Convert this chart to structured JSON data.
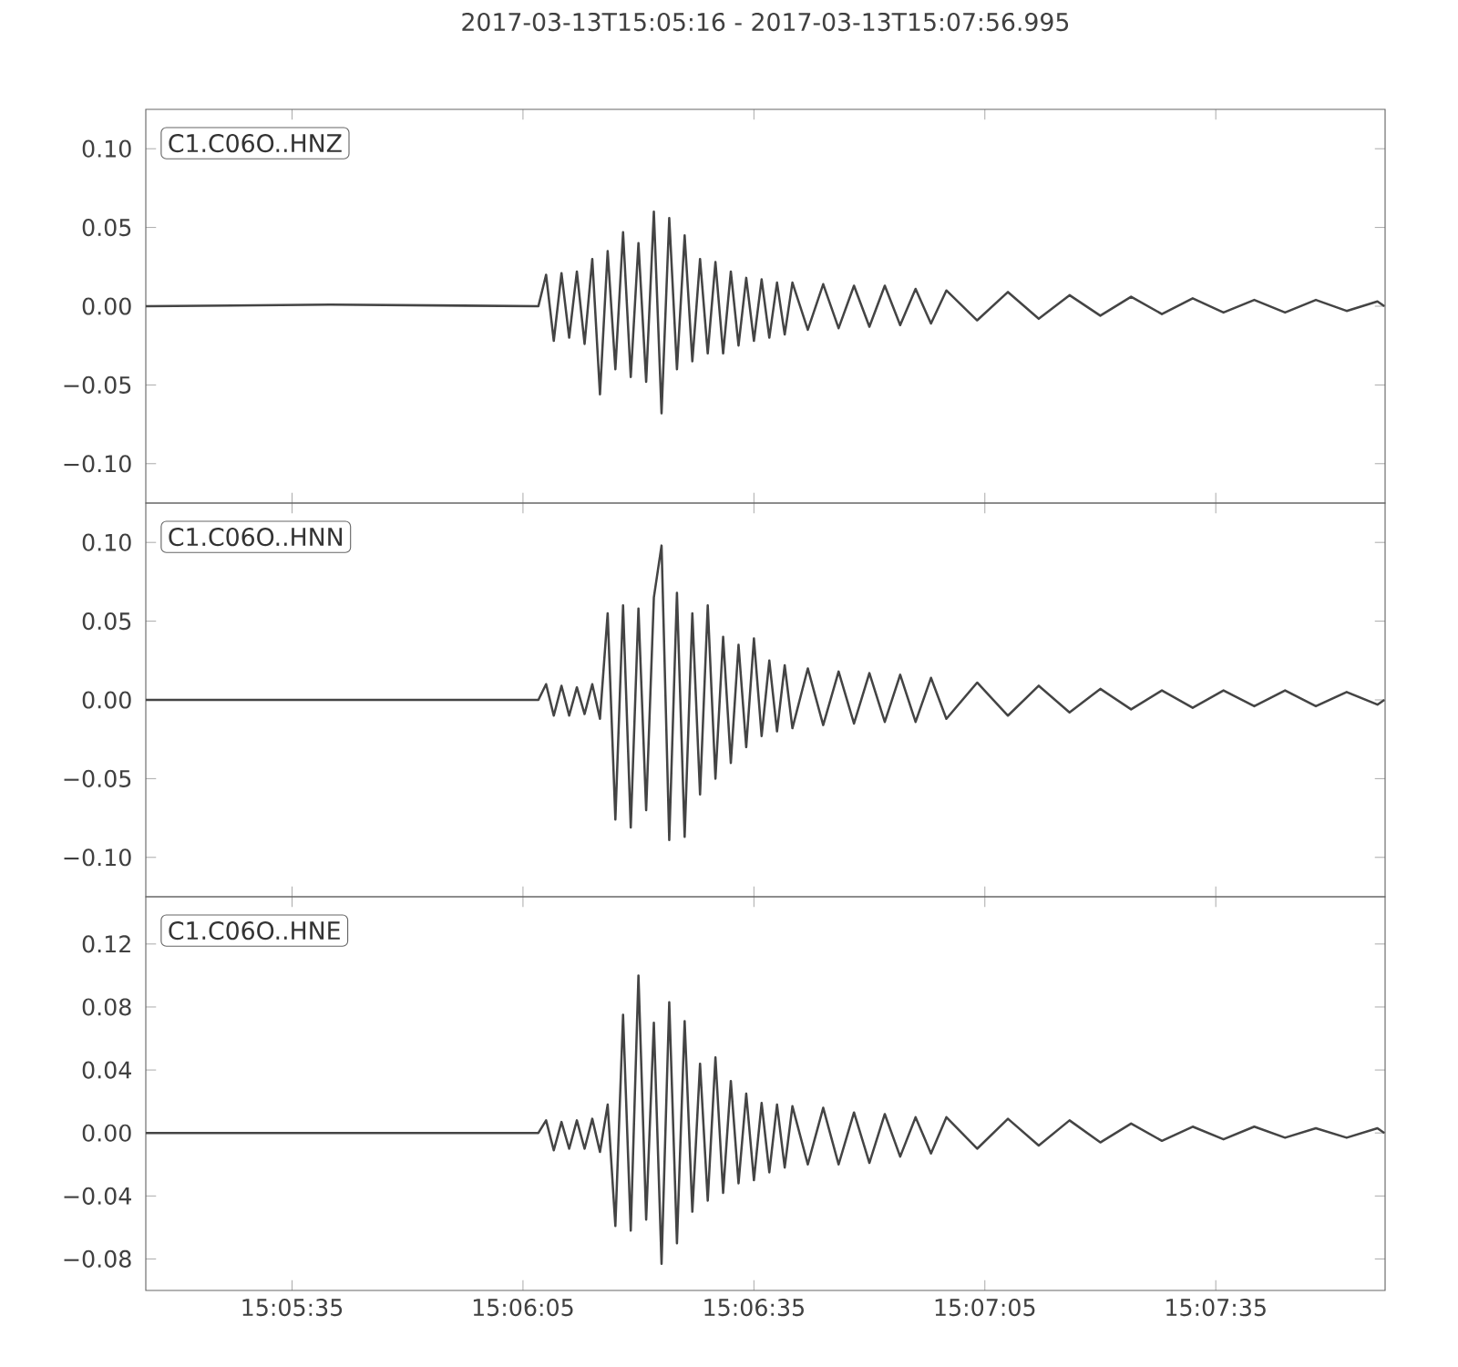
{
  "chart_data": [
    {
      "type": "line",
      "title": "2017-03-13T15:05:16  -  2017-03-13T15:07:56.995",
      "annotations": [
        "C1.C06O..HNZ"
      ],
      "color": "#444444",
      "tick_labels": "y",
      "xlim": [
        "2017-03-13T15:05:16",
        "2017-03-13T15:07:56.995"
      ],
      "xticks": [
        {
          "value": "2017-03-13T15:05:35",
          "label": null
        },
        {
          "value": "2017-03-13T15:06:05",
          "label": null
        },
        {
          "value": "2017-03-13T15:06:35",
          "label": null
        },
        {
          "value": "2017-03-13T15:07:05",
          "label": null
        },
        {
          "value": "2017-03-13T15:07:35",
          "label": null
        }
      ],
      "ylim": [
        -0.125,
        0.125
      ],
      "yticks": [
        {
          "value": -0.1,
          "label": "−0.10"
        },
        {
          "value": -0.05,
          "label": "−0.05"
        },
        {
          "value": 0,
          "label": "0.00"
        },
        {
          "value": 0.05,
          "label": "0.05"
        },
        {
          "value": 0.1,
          "label": "0.10"
        }
      ],
      "x": [
        "2017-03-13T15:05:16",
        "2017-03-13T15:05:40",
        "2017-03-13T15:06:07",
        "2017-03-13T15:06:08",
        "2017-03-13T15:06:09",
        "2017-03-13T15:06:10",
        "2017-03-13T15:06:11",
        "2017-03-13T15:06:12",
        "2017-03-13T15:06:13",
        "2017-03-13T15:06:14",
        "2017-03-13T15:06:15",
        "2017-03-13T15:06:16",
        "2017-03-13T15:06:17",
        "2017-03-13T15:06:18",
        "2017-03-13T15:06:19",
        "2017-03-13T15:06:20",
        "2017-03-13T15:06:21",
        "2017-03-13T15:06:22",
        "2017-03-13T15:06:23",
        "2017-03-13T15:06:24",
        "2017-03-13T15:06:25",
        "2017-03-13T15:06:26",
        "2017-03-13T15:06:27",
        "2017-03-13T15:06:28",
        "2017-03-13T15:06:29",
        "2017-03-13T15:06:30",
        "2017-03-13T15:06:31",
        "2017-03-13T15:06:32",
        "2017-03-13T15:06:33",
        "2017-03-13T15:06:34",
        "2017-03-13T15:06:35",
        "2017-03-13T15:06:36",
        "2017-03-13T15:06:37",
        "2017-03-13T15:06:38",
        "2017-03-13T15:06:39",
        "2017-03-13T15:06:40",
        "2017-03-13T15:06:42",
        "2017-03-13T15:06:44",
        "2017-03-13T15:06:46",
        "2017-03-13T15:06:48",
        "2017-03-13T15:06:50",
        "2017-03-13T15:06:52",
        "2017-03-13T15:06:54",
        "2017-03-13T15:06:56",
        "2017-03-13T15:06:58",
        "2017-03-13T15:07:00",
        "2017-03-13T15:07:04",
        "2017-03-13T15:07:08",
        "2017-03-13T15:07:12",
        "2017-03-13T15:07:16",
        "2017-03-13T15:07:20",
        "2017-03-13T15:07:24",
        "2017-03-13T15:07:28",
        "2017-03-13T15:07:32",
        "2017-03-13T15:07:36",
        "2017-03-13T15:07:40",
        "2017-03-13T15:07:44",
        "2017-03-13T15:07:48",
        "2017-03-13T15:07:52",
        "2017-03-13T15:07:56",
        "2017-03-13T15:07:56.9"
      ],
      "values": [
        0,
        0.001,
        0,
        0.02,
        -0.022,
        0.021,
        -0.02,
        0.022,
        -0.024,
        0.03,
        -0.056,
        0.035,
        -0.04,
        0.047,
        -0.045,
        0.04,
        -0.048,
        0.06,
        -0.068,
        0.056,
        -0.04,
        0.045,
        -0.035,
        0.03,
        -0.03,
        0.028,
        -0.03,
        0.022,
        -0.025,
        0.018,
        -0.022,
        0.017,
        -0.02,
        0.015,
        -0.018,
        0.015,
        -0.015,
        0.014,
        -0.014,
        0.013,
        -0.013,
        0.013,
        -0.012,
        0.011,
        -0.011,
        0.01,
        -0.009,
        0.009,
        -0.008,
        0.007,
        -0.006,
        0.006,
        -0.005,
        0.005,
        -0.004,
        0.004,
        -0.004,
        0.004,
        -0.003,
        0.003,
        0
      ]
    },
    {
      "type": "line",
      "annotations": [
        "C1.C06O..HNN"
      ],
      "color": "#444444",
      "tick_labels": "y",
      "xlim": [
        "2017-03-13T15:05:16",
        "2017-03-13T15:07:56.995"
      ],
      "xticks": [
        {
          "value": "2017-03-13T15:05:35",
          "label": null
        },
        {
          "value": "2017-03-13T15:06:05",
          "label": null
        },
        {
          "value": "2017-03-13T15:06:35",
          "label": null
        },
        {
          "value": "2017-03-13T15:07:05",
          "label": null
        },
        {
          "value": "2017-03-13T15:07:35",
          "label": null
        }
      ],
      "ylim": [
        -0.125,
        0.125
      ],
      "yticks": [
        {
          "value": -0.1,
          "label": "−0.10"
        },
        {
          "value": -0.05,
          "label": "−0.05"
        },
        {
          "value": 0,
          "label": "0.00"
        },
        {
          "value": 0.05,
          "label": "0.05"
        },
        {
          "value": 0.1,
          "label": "0.10"
        }
      ],
      "x": [
        "2017-03-13T15:05:16",
        "2017-03-13T15:05:40",
        "2017-03-13T15:06:07",
        "2017-03-13T15:06:08",
        "2017-03-13T15:06:09",
        "2017-03-13T15:06:10",
        "2017-03-13T15:06:11",
        "2017-03-13T15:06:12",
        "2017-03-13T15:06:13",
        "2017-03-13T15:06:14",
        "2017-03-13T15:06:15",
        "2017-03-13T15:06:16",
        "2017-03-13T15:06:17",
        "2017-03-13T15:06:18",
        "2017-03-13T15:06:19",
        "2017-03-13T15:06:20",
        "2017-03-13T15:06:21",
        "2017-03-13T15:06:22",
        "2017-03-13T15:06:23",
        "2017-03-13T15:06:24",
        "2017-03-13T15:06:25",
        "2017-03-13T15:06:26",
        "2017-03-13T15:06:27",
        "2017-03-13T15:06:28",
        "2017-03-13T15:06:29",
        "2017-03-13T15:06:30",
        "2017-03-13T15:06:31",
        "2017-03-13T15:06:32",
        "2017-03-13T15:06:33",
        "2017-03-13T15:06:34",
        "2017-03-13T15:06:35",
        "2017-03-13T15:06:36",
        "2017-03-13T15:06:37",
        "2017-03-13T15:06:38",
        "2017-03-13T15:06:39",
        "2017-03-13T15:06:40",
        "2017-03-13T15:06:42",
        "2017-03-13T15:06:44",
        "2017-03-13T15:06:46",
        "2017-03-13T15:06:48",
        "2017-03-13T15:06:50",
        "2017-03-13T15:06:52",
        "2017-03-13T15:06:54",
        "2017-03-13T15:06:56",
        "2017-03-13T15:06:58",
        "2017-03-13T15:07:00",
        "2017-03-13T15:07:04",
        "2017-03-13T15:07:08",
        "2017-03-13T15:07:12",
        "2017-03-13T15:07:16",
        "2017-03-13T15:07:20",
        "2017-03-13T15:07:24",
        "2017-03-13T15:07:28",
        "2017-03-13T15:07:32",
        "2017-03-13T15:07:36",
        "2017-03-13T15:07:40",
        "2017-03-13T15:07:44",
        "2017-03-13T15:07:48",
        "2017-03-13T15:07:52",
        "2017-03-13T15:07:56",
        "2017-03-13T15:07:56.9"
      ],
      "values": [
        0,
        0,
        0,
        0.01,
        -0.01,
        0.009,
        -0.01,
        0.008,
        -0.009,
        0.01,
        -0.012,
        0.055,
        -0.076,
        0.06,
        -0.081,
        0.058,
        -0.07,
        0.065,
        0.098,
        -0.089,
        0.068,
        -0.087,
        0.055,
        -0.06,
        0.06,
        -0.05,
        0.04,
        -0.04,
        0.035,
        -0.03,
        0.039,
        -0.023,
        0.025,
        -0.02,
        0.022,
        -0.018,
        0.02,
        -0.016,
        0.018,
        -0.015,
        0.017,
        -0.014,
        0.016,
        -0.014,
        0.014,
        -0.012,
        0.011,
        -0.01,
        0.009,
        -0.008,
        0.007,
        -0.006,
        0.006,
        -0.005,
        0.006,
        -0.004,
        0.006,
        -0.004,
        0.005,
        -0.003,
        0
      ]
    },
    {
      "type": "line",
      "annotations": [
        "C1.C06O..HNE"
      ],
      "color": "#444444",
      "xlim": [
        "2017-03-13T15:05:16",
        "2017-03-13T15:07:56.995"
      ],
      "xticks": [
        {
          "value": "2017-03-13T15:05:35",
          "label": "15:05:35"
        },
        {
          "value": "2017-03-13T15:06:05",
          "label": "15:06:05"
        },
        {
          "value": "2017-03-13T15:06:35",
          "label": "15:06:35"
        },
        {
          "value": "2017-03-13T15:07:05",
          "label": "15:07:05"
        },
        {
          "value": "2017-03-13T15:07:35",
          "label": "15:07:35"
        }
      ],
      "ylim": [
        -0.1,
        0.15
      ],
      "yticks": [
        {
          "value": -0.08,
          "label": "−0.08"
        },
        {
          "value": -0.04,
          "label": "−0.04"
        },
        {
          "value": 0,
          "label": "0.00"
        },
        {
          "value": 0.04,
          "label": "0.04"
        },
        {
          "value": 0.08,
          "label": "0.08"
        },
        {
          "value": 0.12,
          "label": "0.12"
        }
      ],
      "x": [
        "2017-03-13T15:05:16",
        "2017-03-13T15:05:40",
        "2017-03-13T15:06:07",
        "2017-03-13T15:06:08",
        "2017-03-13T15:06:09",
        "2017-03-13T15:06:10",
        "2017-03-13T15:06:11",
        "2017-03-13T15:06:12",
        "2017-03-13T15:06:13",
        "2017-03-13T15:06:14",
        "2017-03-13T15:06:15",
        "2017-03-13T15:06:16",
        "2017-03-13T15:06:17",
        "2017-03-13T15:06:18",
        "2017-03-13T15:06:19",
        "2017-03-13T15:06:20",
        "2017-03-13T15:06:21",
        "2017-03-13T15:06:22",
        "2017-03-13T15:06:23",
        "2017-03-13T15:06:24",
        "2017-03-13T15:06:25",
        "2017-03-13T15:06:26",
        "2017-03-13T15:06:27",
        "2017-03-13T15:06:28",
        "2017-03-13T15:06:29",
        "2017-03-13T15:06:30",
        "2017-03-13T15:06:31",
        "2017-03-13T15:06:32",
        "2017-03-13T15:06:33",
        "2017-03-13T15:06:34",
        "2017-03-13T15:06:35",
        "2017-03-13T15:06:36",
        "2017-03-13T15:06:37",
        "2017-03-13T15:06:38",
        "2017-03-13T15:06:39",
        "2017-03-13T15:06:40",
        "2017-03-13T15:06:42",
        "2017-03-13T15:06:44",
        "2017-03-13T15:06:46",
        "2017-03-13T15:06:48",
        "2017-03-13T15:06:50",
        "2017-03-13T15:06:52",
        "2017-03-13T15:06:54",
        "2017-03-13T15:06:56",
        "2017-03-13T15:06:58",
        "2017-03-13T15:07:00",
        "2017-03-13T15:07:04",
        "2017-03-13T15:07:08",
        "2017-03-13T15:07:12",
        "2017-03-13T15:07:16",
        "2017-03-13T15:07:20",
        "2017-03-13T15:07:24",
        "2017-03-13T15:07:28",
        "2017-03-13T15:07:32",
        "2017-03-13T15:07:36",
        "2017-03-13T15:07:40",
        "2017-03-13T15:07:44",
        "2017-03-13T15:07:48",
        "2017-03-13T15:07:52",
        "2017-03-13T15:07:56",
        "2017-03-13T15:07:56.9"
      ],
      "values": [
        0,
        0,
        0,
        0.008,
        -0.011,
        0.007,
        -0.01,
        0.008,
        -0.01,
        0.009,
        -0.012,
        0.018,
        -0.059,
        0.075,
        -0.062,
        0.1,
        -0.055,
        0.07,
        -0.083,
        0.083,
        -0.07,
        0.071,
        -0.05,
        0.044,
        -0.043,
        0.048,
        -0.038,
        0.033,
        -0.032,
        0.025,
        -0.03,
        0.019,
        -0.025,
        0.018,
        -0.022,
        0.017,
        -0.02,
        0.016,
        -0.02,
        0.013,
        -0.019,
        0.012,
        -0.015,
        0.01,
        -0.013,
        0.01,
        -0.01,
        0.009,
        -0.008,
        0.008,
        -0.006,
        0.006,
        -0.005,
        0.004,
        -0.004,
        0.004,
        -0.003,
        0.003,
        -0.003,
        0.003,
        0
      ]
    }
  ]
}
